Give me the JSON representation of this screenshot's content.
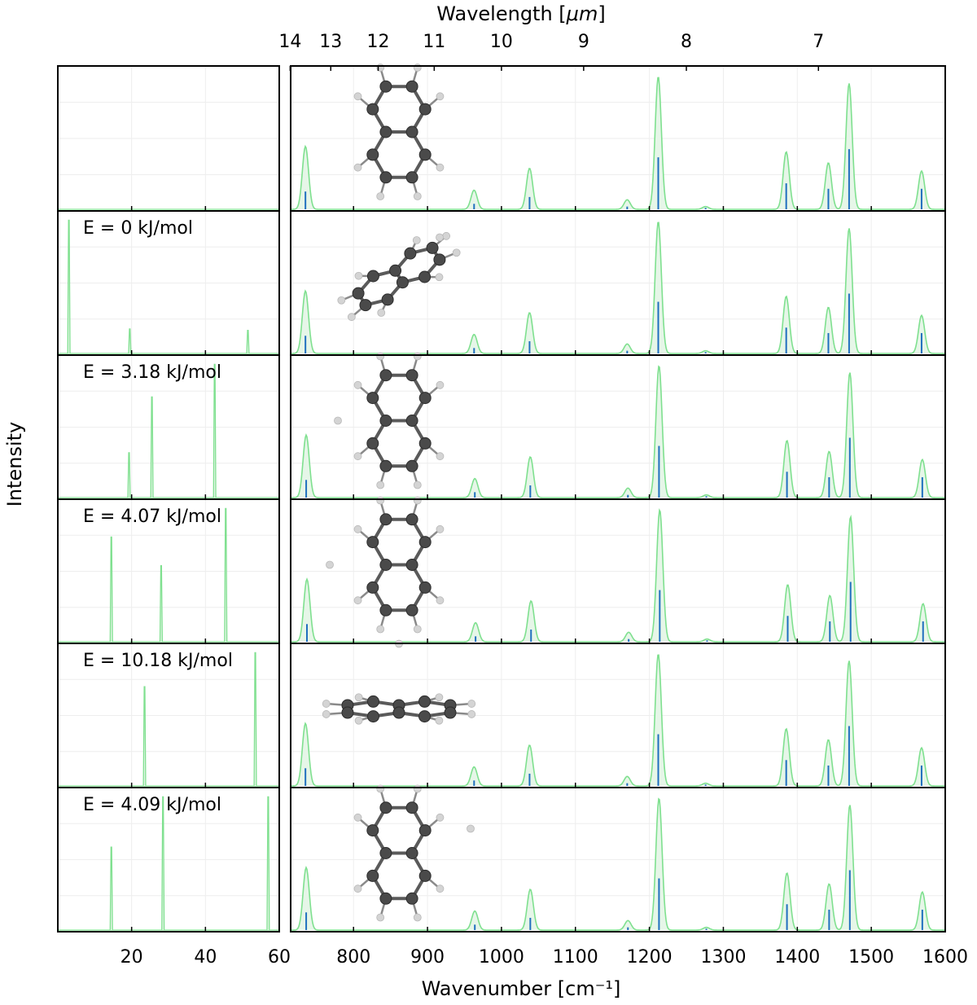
{
  "figure": {
    "ylabel": "Intensity",
    "xlabel": "Wavenumber [cm⁻¹]",
    "top_axis_label_prefix": "Wavelength [",
    "top_axis_label_unit": "μm",
    "top_axis_label_suffix": "]"
  },
  "colors": {
    "envelope": "#7fe08f",
    "fill": "#e6f6e8",
    "stick": "#1f6fbf",
    "grid": "#eeeeee",
    "atom_c": "#4a4a4a",
    "atom_h": "#d4d4d4",
    "bond": "#5a5a5a"
  },
  "chart_data": {
    "type": "line",
    "ylabel": "Intensity",
    "xlabel": "Wavenumber [cm⁻¹]",
    "left_axis": {
      "xlim": [
        0,
        60
      ],
      "ticks": [
        20,
        40,
        60
      ]
    },
    "right_axis": {
      "xlim": [
        715,
        1600
      ],
      "ticks": [
        800,
        900,
        1000,
        1100,
        1200,
        1300,
        1400,
        1500,
        1600
      ]
    },
    "top_axis": {
      "label": "Wavelength [μm]",
      "ticks_um": [
        14,
        13,
        12,
        11,
        10,
        9,
        8,
        7
      ]
    },
    "ir_spectrum": {
      "peak_positions": [
        735,
        963,
        1038,
        1170,
        1212,
        1276,
        1385,
        1442,
        1470,
        1568
      ],
      "peak_heights": [
        0.46,
        0.14,
        0.3,
        0.07,
        0.97,
        0.02,
        0.42,
        0.34,
        0.92,
        0.28
      ],
      "stick_heights": [
        0.13,
        0.04,
        0.09,
        0.02,
        0.38,
        0.01,
        0.19,
        0.15,
        0.44,
        0.15
      ]
    },
    "panels": [
      {
        "label": "",
        "lines": [],
        "peak_shift": 0,
        "molecule": "top"
      },
      {
        "label": "E = 0 kJ/mol",
        "lines": [
          [
            3,
            0.98
          ],
          [
            19.5,
            0.18
          ],
          [
            51.5,
            0.17
          ]
        ],
        "peak_shift": 0,
        "molecule": "tilted"
      },
      {
        "label": "E = 3.18 kJ/mol",
        "lines": [
          [
            19.3,
            0.33
          ],
          [
            25.5,
            0.74
          ],
          [
            42.5,
            0.98
          ]
        ],
        "peak_shift": 1,
        "molecule": "top"
      },
      {
        "label": "E = 4.07 kJ/mol",
        "lines": [
          [
            14.5,
            0.77
          ],
          [
            28,
            0.56
          ],
          [
            45.5,
            0.98
          ]
        ],
        "peak_shift": 2,
        "molecule": "top"
      },
      {
        "label": "E = 10.18 kJ/mol",
        "lines": [
          [
            23.5,
            0.73
          ],
          [
            53.5,
            0.98
          ]
        ],
        "peak_shift": 0,
        "molecule": "edge"
      },
      {
        "label": "E = 4.09 kJ/mol",
        "lines": [
          [
            14.5,
            0.61
          ],
          [
            28.5,
            0.98
          ],
          [
            57,
            0.98
          ]
        ],
        "peak_shift": 1,
        "molecule": "top"
      }
    ]
  }
}
